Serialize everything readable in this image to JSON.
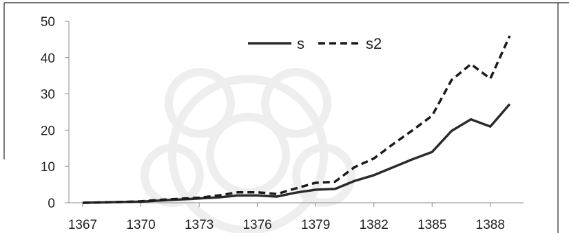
{
  "chart_data": {
    "type": "line",
    "x": [
      1367,
      1368,
      1369,
      1370,
      1371,
      1372,
      1373,
      1374,
      1375,
      1376,
      1377,
      1378,
      1379,
      1380,
      1381,
      1382,
      1383,
      1384,
      1385,
      1386,
      1387,
      1388,
      1389
    ],
    "x_ticks": [
      "1367",
      "1370",
      "1373",
      "1376",
      "1379",
      "1382",
      "1385",
      "1388"
    ],
    "y_ticks": [
      "0",
      "10",
      "20",
      "30",
      "40",
      "50"
    ],
    "ylim": [
      0,
      50
    ],
    "series": [
      {
        "name": "s",
        "style": "solid",
        "color": "#2b2b2b",
        "values": [
          0,
          0.1,
          0.2,
          0.3,
          0.6,
          0.9,
          1.2,
          1.5,
          2.0,
          2.0,
          1.7,
          2.8,
          3.6,
          3.8,
          6.0,
          7.6,
          9.8,
          12.0,
          14.0,
          19.8,
          23.0,
          21.0,
          27.2
        ]
      },
      {
        "name": "s2",
        "style": "dashed",
        "color": "#1a1a1a",
        "values": [
          0,
          0.1,
          0.2,
          0.4,
          0.8,
          1.1,
          1.4,
          2.0,
          2.9,
          2.9,
          2.4,
          4.0,
          5.5,
          5.8,
          9.8,
          12.2,
          16.2,
          20.0,
          24.0,
          33.8,
          38.2,
          34.2,
          46.0
        ]
      }
    ],
    "legend_position": "top-center",
    "grid": false
  }
}
